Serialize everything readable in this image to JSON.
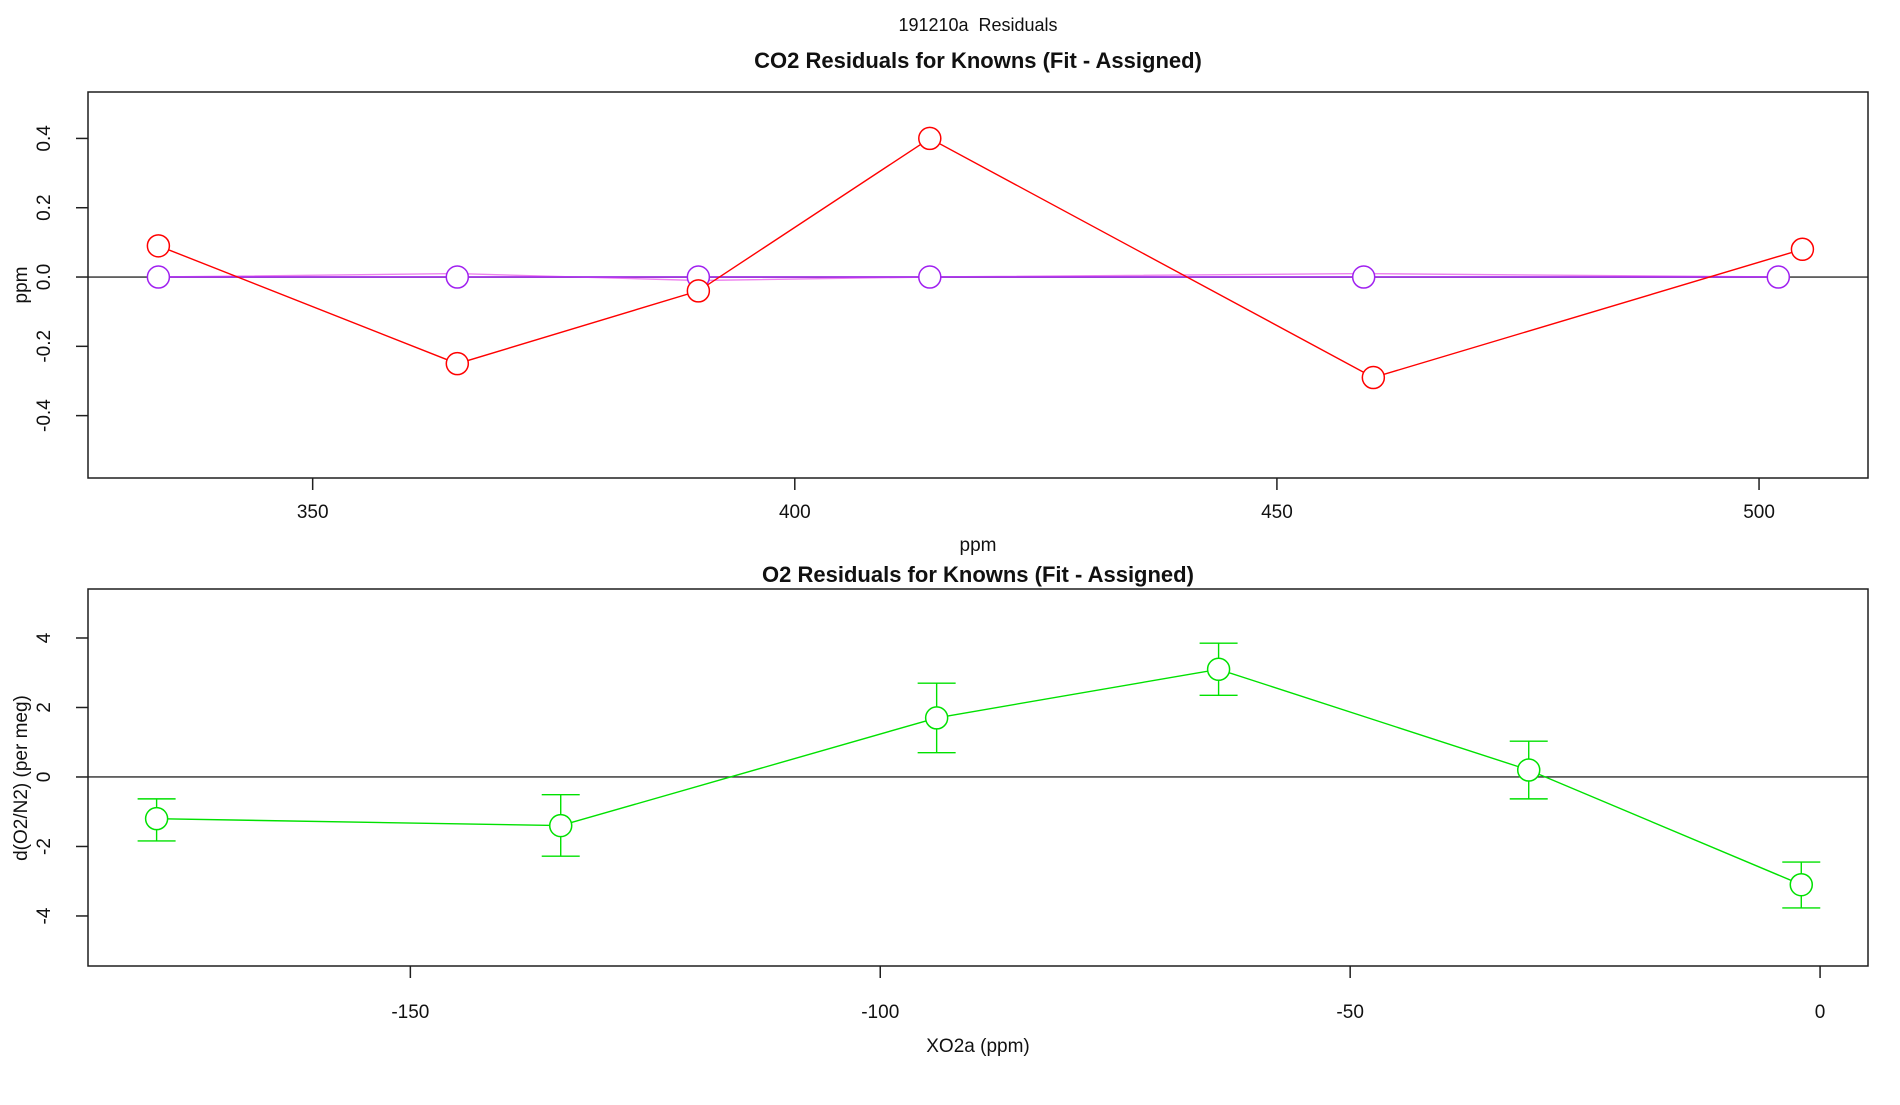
{
  "page": {
    "title": "191210a  Residuals"
  },
  "chart_data": [
    {
      "type": "line",
      "title": "CO2 Residuals for Knowns (Fit - Assigned)",
      "xlabel": "ppm",
      "ylabel": "ppm",
      "xlim": [
        326.7,
        511.3
      ],
      "ylim": [
        -0.58,
        0.534
      ],
      "x_ticks": [
        350,
        400,
        450,
        500
      ],
      "x_tick_labels": [
        "350",
        "400",
        "450",
        "500"
      ],
      "y_ticks": [
        -0.4,
        -0.2,
        0.0,
        0.2,
        0.4
      ],
      "y_tick_labels": [
        "-0.4",
        "-0.2",
        "0.0",
        "0.2",
        "0.4"
      ],
      "zero_line": true,
      "zero_line_color": "#2b2b2b",
      "grid": false,
      "legend": "none",
      "series": [
        {
          "name": "violet-residuals",
          "color": "#ee82ee",
          "marker": "none",
          "x": [
            334,
            365,
            390,
            414,
            459,
            502
          ],
          "y": [
            0.0,
            0.01,
            -0.01,
            0.0,
            0.01,
            0.0
          ]
        },
        {
          "name": "purple-residuals",
          "color": "#a020f0",
          "marker": "circle",
          "x": [
            334,
            365,
            390,
            414,
            459,
            502
          ],
          "y": [
            0.0,
            0.0,
            0.0,
            0.0,
            0.0,
            0.0
          ]
        },
        {
          "name": "red-residuals",
          "color": "#ff0000",
          "marker": "circle",
          "x": [
            334,
            365,
            390,
            414,
            460,
            504.5
          ],
          "y": [
            0.09,
            -0.25,
            -0.04,
            0.4,
            -0.29,
            0.08
          ]
        }
      ]
    },
    {
      "type": "line",
      "title": "O2 Residuals for Knowns (Fit - Assigned)",
      "xlabel": "XO2a (ppm)",
      "ylabel": "d(O2/N2) (per meg)",
      "xlim": [
        -184.3,
        5.1
      ],
      "ylim": [
        -5.44,
        5.41
      ],
      "x_ticks": [
        -150,
        -100,
        -50,
        0
      ],
      "x_tick_labels": [
        "-150",
        "-100",
        "-50",
        "0"
      ],
      "y_ticks": [
        -4,
        -2,
        0,
        2,
        4
      ],
      "y_tick_labels": [
        "-4",
        "-2",
        "0",
        "2",
        "4"
      ],
      "zero_line": true,
      "zero_line_color": "#2b2b2b",
      "grid": false,
      "legend": "none",
      "series": [
        {
          "name": "green-o2-residuals",
          "color": "#00e100",
          "marker": "circle",
          "x": [
            -177,
            -134,
            -94,
            -64,
            -31,
            -2
          ],
          "y": [
            -1.2,
            -1.4,
            1.7,
            3.1,
            0.2,
            -3.1
          ],
          "err_hi": [
            -0.63,
            -0.51,
            2.7,
            3.85,
            1.03,
            -2.45
          ],
          "err_lo": [
            -1.84,
            -2.28,
            0.7,
            2.35,
            -0.63,
            -3.77
          ]
        }
      ]
    }
  ]
}
